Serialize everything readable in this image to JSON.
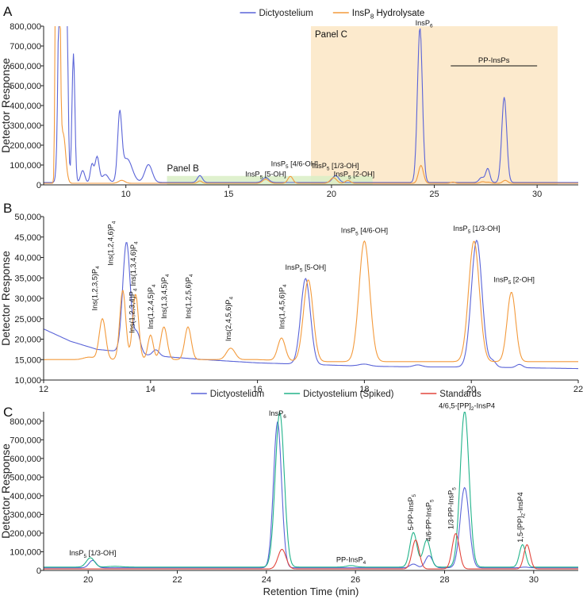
{
  "colors": {
    "dictyostelium": "#5a64d8",
    "hydrolysate": "#f39a3c",
    "spiked": "#22b38a",
    "standards": "#e2463c",
    "panel_c_shade": "#fbe6c4",
    "panel_b_shade": "#d9efc6",
    "axis": "#222222"
  },
  "chart_data": [
    {
      "panel_label": "A",
      "type": "line",
      "xlabel": "",
      "ylabel": "Detector Response",
      "xlim": [
        6,
        32
      ],
      "ylim": [
        0,
        800000
      ],
      "x_ticks": [
        10,
        15,
        20,
        25,
        30
      ],
      "y_ticks": [
        0,
        100000,
        200000,
        300000,
        400000,
        500000,
        600000,
        700000,
        800000
      ],
      "y_tick_labels": [
        "0",
        "100,000",
        "200,000",
        "300,000",
        "400,000",
        "500,000",
        "600,000",
        "700,000",
        "800,000"
      ],
      "legend_position": "top",
      "legend": [
        {
          "name": "Dictyostelium",
          "color_key": "dictyostelium"
        },
        {
          "name": "InsP",
          "sub": "8",
          "suffix": " Hydrolysate",
          "color_key": "hydrolysate"
        }
      ],
      "regions": [
        {
          "label": "Panel C",
          "x_range": [
            19,
            31
          ],
          "y_range": [
            0,
            800000
          ],
          "color_key": "panel_c_shade"
        },
        {
          "label": "Panel B",
          "x_range": [
            12,
            22
          ],
          "y_range": [
            0,
            45000
          ],
          "color_key": "panel_b_shade"
        }
      ],
      "bracket": {
        "label": "PP-InsPs",
        "x_range": [
          25.8,
          30
        ],
        "y": 600000
      },
      "annotations": [
        {
          "text": "InsP",
          "sub": "6",
          "suffix": "",
          "x": 24.5,
          "y": 805000
        },
        {
          "text": "InsP",
          "sub": "5",
          "suffix": " [5-OH]",
          "x": 16.8,
          "y": 42000
        },
        {
          "text": "InsP",
          "sub": "5",
          "suffix": " [4/6-OH]",
          "x": 18.2,
          "y": 95000
        },
        {
          "text": "InsP",
          "sub": "5",
          "suffix": " [1/3-OH]",
          "x": 20.2,
          "y": 85000
        },
        {
          "text": "InsP",
          "sub": "5",
          "suffix": " [2-OH]",
          "x": 21.1,
          "y": 42000
        }
      ],
      "series": [
        {
          "name": "Dictyostelium",
          "color_key": "dictyostelium",
          "baseline": 12000,
          "peaks": [
            [
              6.85,
              2000000,
              0.1
            ],
            [
              7.1,
              1200000,
              0.07
            ],
            [
              7.45,
              650000,
              0.07
            ],
            [
              7.9,
              60000,
              0.1
            ],
            [
              8.35,
              90000,
              0.08
            ],
            [
              8.6,
              130000,
              0.1
            ],
            [
              9.0,
              40000,
              0.15
            ],
            [
              9.7,
              320000,
              0.1
            ],
            [
              10.05,
              120000,
              0.25
            ],
            [
              11.1,
              90000,
              0.18
            ],
            [
              13.6,
              35000,
              0.12
            ],
            [
              16.8,
              25000,
              0.15
            ],
            [
              20.2,
              35000,
              0.15
            ],
            [
              24.3,
              780000,
              0.12
            ],
            [
              27.3,
              25000,
              0.12
            ],
            [
              27.6,
              70000,
              0.1
            ],
            [
              28.4,
              430000,
              0.12
            ]
          ]
        },
        {
          "name": "InsP8 Hydrolysate",
          "color_key": "hydrolysate",
          "baseline": 8000,
          "peaks": [
            [
              6.6,
              2000000,
              0.04
            ],
            [
              6.75,
              1200000,
              0.06
            ],
            [
              6.95,
              250000,
              0.12
            ],
            [
              9.8,
              15000,
              0.15
            ],
            [
              13.6,
              12000,
              0.1
            ],
            [
              16.8,
              20000,
              0.15
            ],
            [
              18.0,
              35000,
              0.12
            ],
            [
              20.1,
              28000,
              0.15
            ],
            [
              20.8,
              15000,
              0.12
            ],
            [
              24.35,
              90000,
              0.12
            ],
            [
              25.9,
              6000,
              0.1
            ],
            [
              27.35,
              8000,
              0.12
            ],
            [
              27.65,
              5000,
              0.1
            ],
            [
              28.45,
              15000,
              0.12
            ]
          ]
        }
      ]
    },
    {
      "panel_label": "B",
      "type": "line",
      "xlabel": "",
      "ylabel": "Detector Response",
      "xlim": [
        12,
        22
      ],
      "ylim": [
        10000,
        50000
      ],
      "x_ticks": [
        12,
        14,
        16,
        18,
        20,
        22
      ],
      "y_ticks": [
        10000,
        15000,
        20000,
        25000,
        30000,
        35000,
        40000,
        45000,
        50000
      ],
      "y_tick_labels": [
        "10,000",
        "15,000",
        "20,000",
        "25,000",
        "30,000",
        "35,000",
        "40,000",
        "45,000",
        "50,000"
      ],
      "annotations": [
        {
          "text": "Ins(1,2,3,5)P",
          "sub": "4",
          "suffix": "",
          "x": 13.0,
          "y": 27000,
          "rotate": true
        },
        {
          "text": "Ins(1,2,4,6)P",
          "sub": "4",
          "suffix": "",
          "x": 13.3,
          "y": 38000,
          "rotate": true
        },
        {
          "text": "Ins(1,3,4,6)P",
          "sub": "4",
          "suffix": "",
          "x": 13.72,
          "y": 33000,
          "rotate": true
        },
        {
          "text": "Ins(1,2,3,4)P",
          "sub": "4",
          "suffix": "",
          "x": 13.7,
          "y": 21500,
          "rotate": true
        },
        {
          "text": "Ins(1,2,4,5)P",
          "sub": "4",
          "suffix": "",
          "x": 14.05,
          "y": 22500,
          "rotate": true
        },
        {
          "text": "Ins(1,3,4,5)P",
          "sub": "4",
          "suffix": "",
          "x": 14.3,
          "y": 25000,
          "rotate": true
        },
        {
          "text": "Ins(1,2,5,6)P",
          "sub": "4",
          "suffix": "",
          "x": 14.75,
          "y": 25000,
          "rotate": true
        },
        {
          "text": "Ins(2,4,5,6)P",
          "sub": "4",
          "suffix": "",
          "x": 15.5,
          "y": 19500,
          "rotate": true
        },
        {
          "text": "Ins(1,4,5,6)P",
          "sub": "4",
          "suffix": "",
          "x": 16.5,
          "y": 22500,
          "rotate": true
        },
        {
          "text": "InsP",
          "sub": "5",
          "suffix": " [5-OH]",
          "x": 16.9,
          "y": 37000
        },
        {
          "text": "InsP",
          "sub": "5",
          "suffix": " [4/6-OH]",
          "x": 18.0,
          "y": 46000
        },
        {
          "text": "InsP",
          "sub": "5",
          "suffix": " [1/3-OH]",
          "x": 20.1,
          "y": 46500
        },
        {
          "text": "InsP",
          "sub": "5",
          "suffix": " [2-OH]",
          "x": 20.8,
          "y": 34000
        }
      ],
      "series": [
        {
          "name": "Dictyostelium",
          "color_key": "dictyostelium",
          "baseline_points": [
            [
              12,
              22500
            ],
            [
              12.5,
              19500
            ],
            [
              13,
              17500
            ],
            [
              13.4,
              17000
            ],
            [
              14,
              16000
            ],
            [
              15,
              15000
            ],
            [
              16,
              14200
            ],
            [
              17,
              13800
            ],
            [
              18,
              13400
            ],
            [
              19,
              13200
            ],
            [
              20,
              13200
            ],
            [
              21,
              13000
            ],
            [
              22,
              12800
            ]
          ],
          "peaks": [
            [
              13.55,
              27000,
              0.07
            ],
            [
              13.75,
              5000,
              0.06
            ],
            [
              14.1,
              1500,
              0.06
            ],
            [
              16.9,
              21000,
              0.09
            ],
            [
              18.0,
              500,
              0.1
            ],
            [
              19.0,
              500,
              0.08
            ],
            [
              20.1,
              31000,
              0.1
            ],
            [
              20.4,
              1500,
              0.06
            ],
            [
              20.9,
              800,
              0.06
            ]
          ]
        },
        {
          "name": "InsP8 Hydrolysate",
          "color_key": "hydrolysate",
          "baseline_points": [
            [
              12,
              15000
            ],
            [
              13,
              15000
            ],
            [
              14,
              15000
            ],
            [
              15,
              15000
            ],
            [
              16,
              15000
            ],
            [
              17,
              14500
            ],
            [
              18,
              14500
            ],
            [
              19,
              14500
            ],
            [
              20,
              14500
            ],
            [
              21,
              14500
            ],
            [
              22,
              14500
            ]
          ],
          "peaks": [
            [
              12.85,
              600,
              0.1
            ],
            [
              13.1,
              10000,
              0.06
            ],
            [
              13.48,
              17000,
              0.055
            ],
            [
              13.72,
              16000,
              0.055
            ],
            [
              14.0,
              6000,
              0.05
            ],
            [
              14.25,
              8000,
              0.06
            ],
            [
              14.7,
              8000,
              0.06
            ],
            [
              15.5,
              2800,
              0.08
            ],
            [
              16.45,
              5500,
              0.07
            ],
            [
              16.95,
              20000,
              0.09
            ],
            [
              18.0,
              29500,
              0.1
            ],
            [
              20.05,
              29500,
              0.1
            ],
            [
              20.75,
              17000,
              0.08
            ]
          ]
        }
      ]
    },
    {
      "panel_label": "C",
      "type": "line",
      "xlabel": "Retention Time (min)",
      "ylabel": "Detector Response",
      "xlim": [
        19,
        31
      ],
      "ylim": [
        0,
        850000
      ],
      "x_ticks": [
        20,
        22,
        24,
        26,
        28,
        30
      ],
      "y_ticks": [
        0,
        100000,
        200000,
        300000,
        400000,
        500000,
        600000,
        700000,
        800000
      ],
      "y_tick_labels": [
        "0",
        "100,000",
        "200,000",
        "300,000",
        "400,000",
        "500,000",
        "600,000",
        "700,000",
        "800,000"
      ],
      "legend_position": "top",
      "legend": [
        {
          "name": "Dictyostelium",
          "color_key": "dictyostelium"
        },
        {
          "name": "Dictyostelium (Spiked)",
          "color_key": "spiked"
        },
        {
          "name": "Standards",
          "color_key": "standards"
        }
      ],
      "annotations": [
        {
          "text": "InsP",
          "sub": "6",
          "suffix": "",
          "x": 24.25,
          "y": 828000
        },
        {
          "text": "InsP",
          "sub": "5",
          "suffix": " [1/3-OH]",
          "x": 20.1,
          "y": 80000
        },
        {
          "text": "PP-InsP",
          "sub": "4",
          "suffix": "",
          "x": 25.9,
          "y": 45000
        },
        {
          "text": "5-PP-InsP",
          "sub": "5",
          "suffix": "",
          "x": 27.3,
          "y": 215000,
          "rotate": true
        },
        {
          "text": "4/6-PP-InsP",
          "sub": "5",
          "suffix": "",
          "x": 27.7,
          "y": 155000,
          "rotate": true
        },
        {
          "text": "1/3-PP-InsP",
          "sub": "5",
          "suffix": "",
          "x": 28.2,
          "y": 220000,
          "rotate": true
        },
        {
          "text": "4/6,5-[PP]",
          "sub": "2",
          "suffix": "-InsP4",
          "x": 28.5,
          "y": 870000
        },
        {
          "text": "1,5-[PP]",
          "sub": "2",
          "suffix": "-InsP4",
          "x": 29.75,
          "y": 150000,
          "rotate": true
        }
      ],
      "series": [
        {
          "name": "Dictyostelium",
          "color_key": "dictyostelium",
          "baseline": 14000,
          "peaks": [
            [
              20.1,
              40000,
              0.08
            ],
            [
              24.25,
              780000,
              0.09
            ],
            [
              27.3,
              20000,
              0.08
            ],
            [
              27.65,
              65000,
              0.08
            ],
            [
              28.45,
              430000,
              0.1
            ],
            [
              29.8,
              4000,
              0.08
            ]
          ]
        },
        {
          "name": "Dictyostelium (Spiked)",
          "color_key": "spiked",
          "baseline": 18000,
          "peaks": [
            [
              20.05,
              50000,
              0.09
            ],
            [
              20.6,
              4000,
              0.15
            ],
            [
              24.3,
              830000,
              0.1
            ],
            [
              25.9,
              8000,
              0.1
            ],
            [
              27.3,
              185000,
              0.08
            ],
            [
              27.6,
              145000,
              0.08
            ],
            [
              28.45,
              835000,
              0.1
            ],
            [
              29.75,
              120000,
              0.07
            ]
          ]
        },
        {
          "name": "Standards",
          "color_key": "standards",
          "baseline": 8000,
          "peaks": [
            [
              24.35,
              105000,
              0.09
            ],
            [
              27.35,
              155000,
              0.08
            ],
            [
              28.25,
              190000,
              0.08
            ],
            [
              29.85,
              130000,
              0.07
            ]
          ]
        }
      ]
    }
  ]
}
